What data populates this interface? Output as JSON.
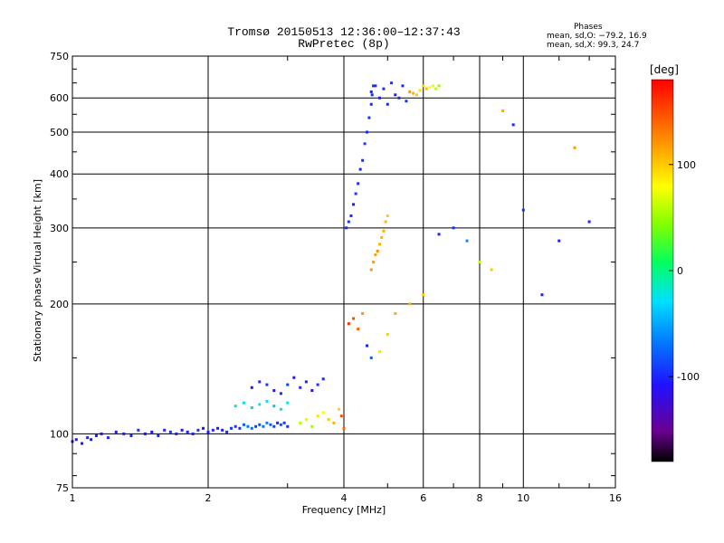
{
  "title_line1": "Tromsø 20150513 12:36:00–12:37:43",
  "title_line2": "RwPretec (8p)",
  "stats": {
    "heading": "Phases",
    "o_mode": "mean, sd,O: −79.2, 16.9",
    "x_mode": "mean, sd,X:  99.3, 24.7"
  },
  "colorbar": {
    "unit_label": "[deg]",
    "range": [
      -180,
      180
    ],
    "tick_labels": [
      "100",
      "0",
      "-100"
    ],
    "tick_values": [
      100,
      0,
      -100
    ]
  },
  "chart_data": {
    "type": "scatter",
    "xlabel": "Frequency [MHz]",
    "ylabel": "Stationary phase Virtual Height [km]",
    "xscale": "log",
    "yscale": "log",
    "xlim": [
      1,
      16
    ],
    "ylim": [
      75,
      750
    ],
    "x_tick_labels": [
      "1",
      "2",
      "4",
      "6",
      "8",
      "10",
      "16"
    ],
    "x_tick_values": [
      1,
      2,
      4,
      6,
      8,
      10,
      16
    ],
    "y_tick_labels": [
      "75",
      "100",
      "200",
      "300",
      "400",
      "500",
      "600",
      "750"
    ],
    "y_tick_values": [
      75,
      100,
      200,
      300,
      400,
      500,
      600,
      750
    ],
    "grid": true,
    "color_encoding": "phase_deg",
    "series": [
      {
        "x": [
          1.0,
          1.02,
          1.05,
          1.08,
          1.1,
          1.13,
          1.16,
          1.2,
          1.25,
          1.3,
          1.35,
          1.4,
          1.45,
          1.5,
          1.55,
          1.6,
          1.65,
          1.7,
          1.75,
          1.8,
          1.85,
          1.9,
          1.95,
          2.0,
          2.05,
          2.1,
          2.15,
          2.2,
          2.25,
          2.3,
          2.35,
          2.4,
          2.45,
          2.5,
          2.55,
          2.6,
          2.65,
          2.7,
          2.75,
          2.8,
          2.85,
          2.9,
          2.95,
          3.0
        ],
        "y": [
          96,
          97,
          95,
          98,
          97,
          99,
          100,
          98,
          101,
          100,
          99,
          102,
          100,
          101,
          99,
          102,
          101,
          100,
          102,
          101,
          100,
          102,
          103,
          101,
          102,
          103,
          102,
          101,
          103,
          104,
          103,
          105,
          104,
          103,
          104,
          105,
          104,
          106,
          105,
          104,
          106,
          105,
          106,
          104
        ],
        "phase": [
          -110,
          -105,
          -108,
          -102,
          -110,
          -100,
          -115,
          -98,
          -106,
          -104,
          -100,
          -95,
          -108,
          -110,
          -102,
          -100,
          -95,
          -104,
          -108,
          -100,
          -105,
          -96,
          -110,
          -102,
          -98,
          -106,
          -104,
          -100,
          -95,
          -92,
          -100,
          -80,
          -70,
          -75,
          -90,
          -85,
          -70,
          -65,
          -80,
          -90,
          -100,
          -85,
          -95,
          -100
        ]
      },
      {
        "x": [
          3.2,
          3.3,
          3.4,
          3.5,
          3.6,
          3.7,
          3.8,
          3.9,
          3.95,
          4.0,
          4.05,
          4.1,
          4.15,
          4.2,
          4.25,
          4.3,
          4.35,
          4.4,
          4.45,
          4.5,
          4.55,
          4.6,
          4.62,
          4.65
        ],
        "y": [
          106,
          108,
          104,
          110,
          112,
          108,
          106,
          114,
          110,
          103,
          300,
          310,
          320,
          340,
          360,
          380,
          410,
          430,
          470,
          500,
          540,
          580,
          610,
          640
        ],
        "phase": [
          60,
          70,
          50,
          90,
          80,
          100,
          110,
          95,
          150,
          140,
          -100,
          -95,
          -100,
          -105,
          -90,
          -95,
          -100,
          -98,
          -92,
          -100,
          -95,
          -98,
          -100,
          -96
        ]
      },
      {
        "x": [
          4.6,
          4.7,
          4.8,
          4.9,
          5.0,
          5.1,
          5.2,
          5.3,
          5.4,
          5.5,
          5.6,
          5.7,
          5.8,
          5.9,
          6.0,
          6.1,
          6.2,
          6.3,
          6.4,
          6.5
        ],
        "y": [
          620,
          640,
          600,
          630,
          580,
          650,
          610,
          600,
          640,
          590,
          620,
          615,
          610,
          625,
          640,
          630,
          635,
          640,
          630,
          640
        ],
        "phase": [
          -100,
          -95,
          -105,
          -98,
          -100,
          -96,
          -102,
          -100,
          -98,
          -95,
          120,
          110,
          100,
          90,
          95,
          105,
          80,
          70,
          60,
          50
        ]
      },
      {
        "x": [
          4.6,
          4.65,
          4.7,
          4.75,
          4.8,
          4.85,
          4.9,
          4.95,
          5.0
        ],
        "y": [
          240,
          250,
          260,
          265,
          275,
          285,
          295,
          310,
          320
        ],
        "phase": [
          120,
          118,
          115,
          122,
          110,
          108,
          112,
          105,
          100
        ]
      },
      {
        "x": [
          2.5,
          2.6,
          2.7,
          2.8,
          2.9,
          3.0,
          3.1,
          3.2,
          3.3,
          3.4,
          3.5,
          3.6
        ],
        "y": [
          128,
          132,
          130,
          126,
          124,
          130,
          135,
          128,
          132,
          126,
          130,
          134
        ],
        "phase": [
          -110,
          -100,
          -95,
          -105,
          -100,
          -90,
          -108,
          -98,
          -102,
          -110,
          -95,
          -100
        ]
      },
      {
        "x": [
          2.3,
          2.4,
          2.5,
          2.6,
          2.7,
          2.8,
          2.9,
          3.0
        ],
        "y": [
          116,
          118,
          115,
          117,
          119,
          116,
          114,
          118
        ],
        "phase": [
          -30,
          -25,
          -35,
          -20,
          -28,
          -40,
          -30,
          -22
        ]
      },
      {
        "x": [
          4.1,
          4.2,
          4.3,
          4.4,
          4.5,
          4.6,
          4.8,
          5.0,
          5.2,
          5.6,
          6.0,
          6.5,
          7.0,
          7.5,
          8.0,
          8.5,
          9.0,
          9.5,
          10.0,
          11.0,
          12.0,
          13.0,
          14.0
        ],
        "y": [
          180,
          185,
          175,
          190,
          160,
          150,
          155,
          170,
          190,
          200,
          210,
          290,
          300,
          280,
          250,
          240,
          560,
          520,
          330,
          210,
          280,
          460,
          310
        ],
        "phase": [
          160,
          150,
          140,
          120,
          -100,
          -80,
          90,
          100,
          110,
          110,
          100,
          -100,
          -95,
          -60,
          60,
          100,
          110,
          -100,
          -100,
          -100,
          -100,
          120,
          -100
        ]
      }
    ]
  }
}
